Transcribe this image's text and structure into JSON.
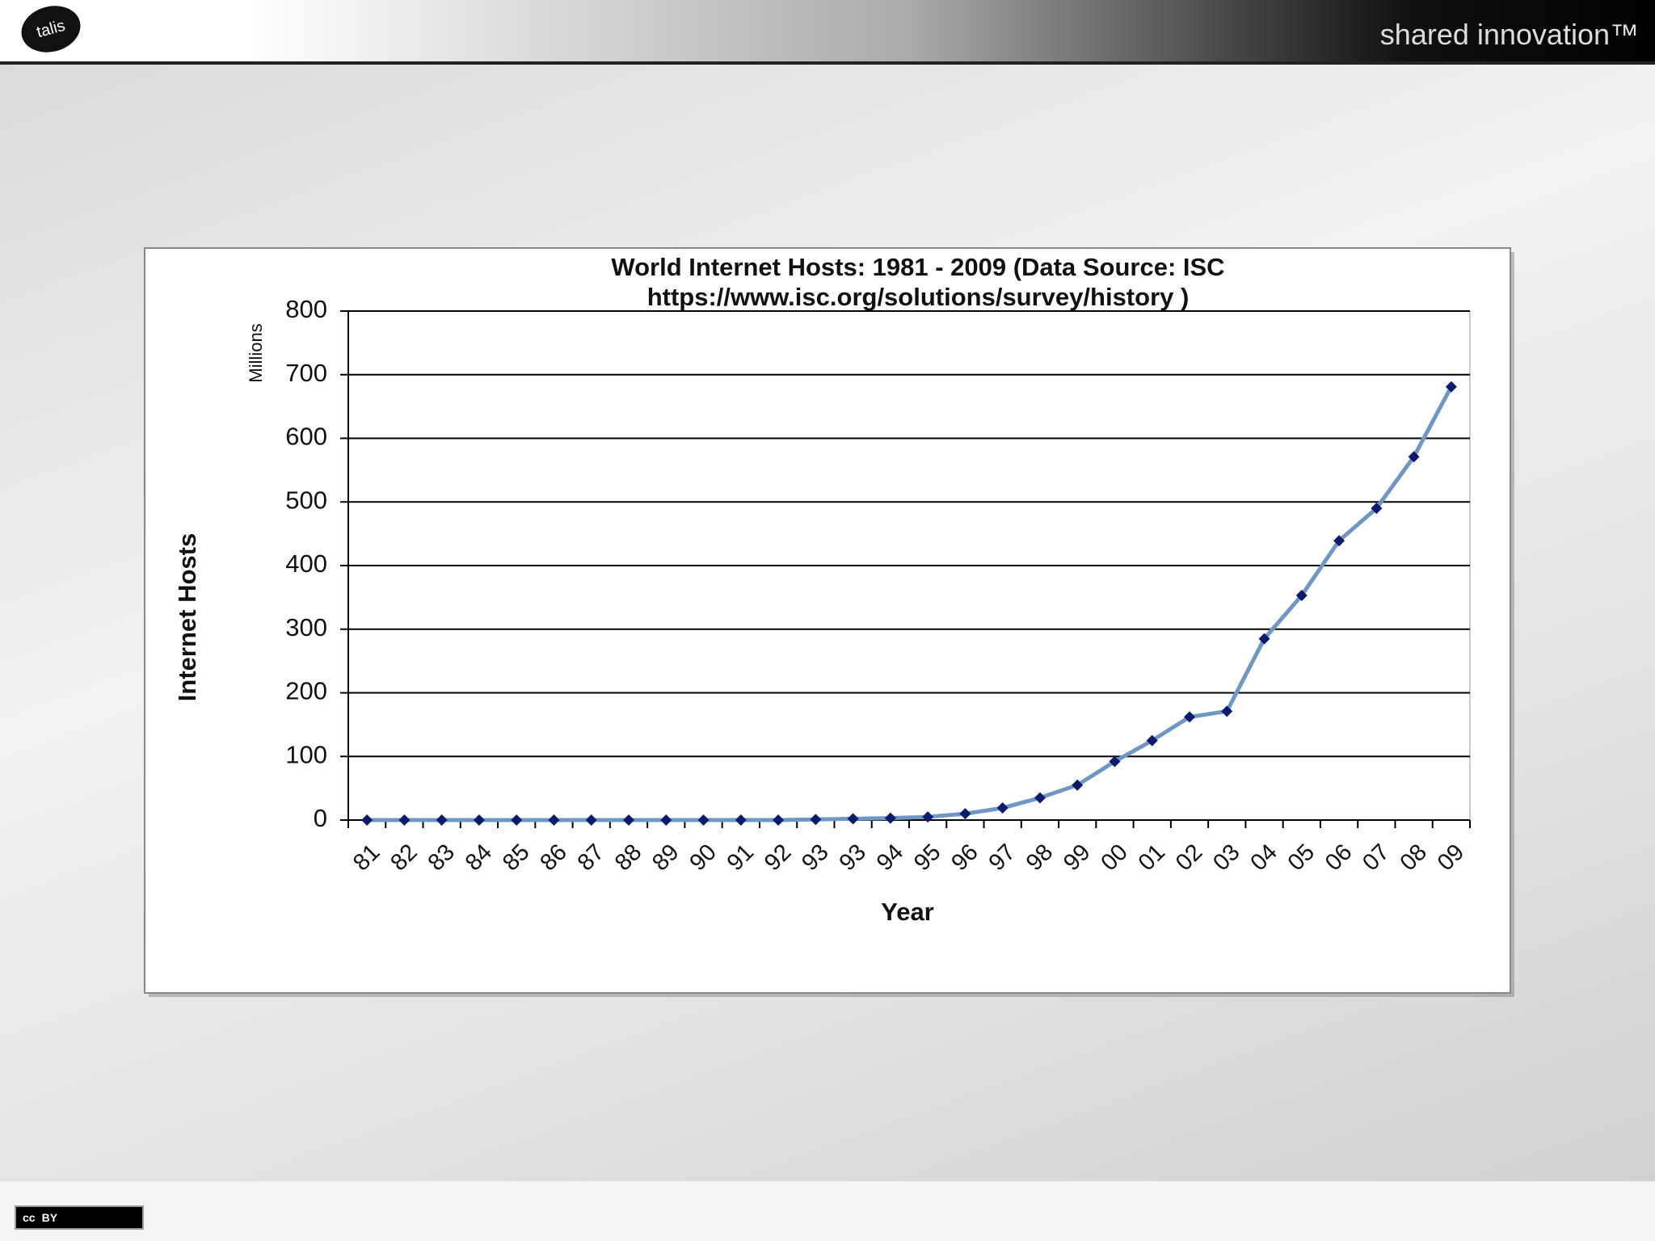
{
  "slide": {
    "logo": "talis",
    "tagline": "shared innovation™",
    "license_cc": "cc",
    "license": "BY"
  },
  "chart_data": {
    "type": "line",
    "title": [
      "World Internet Hosts: 1981 - 2009 (Data Source: ISC",
      "https://www.isc.org/solutions/survey/history )"
    ],
    "y_label": "Internet Hosts",
    "y_unit": "Millions",
    "x_label": "Year",
    "categories": [
      "81",
      "82",
      "83",
      "84",
      "85",
      "86",
      "87",
      "88",
      "89",
      "90",
      "91",
      "92",
      "93",
      "93",
      "94",
      "95",
      "96",
      "97",
      "98",
      "99",
      "00",
      "01",
      "02",
      "03",
      "04",
      "05",
      "06",
      "07",
      "08",
      "09"
    ],
    "values": [
      0,
      0,
      0,
      0,
      0,
      0,
      0,
      0,
      0,
      0,
      0,
      0,
      1,
      2,
      3,
      5,
      10,
      19,
      35,
      55,
      92,
      125,
      162,
      171,
      285,
      353,
      439,
      490,
      571,
      681
    ],
    "color": "#6f97c4",
    "marker_color": "#0a1a6e",
    "ylim": [
      0,
      800
    ],
    "yticks": [
      0,
      100,
      200,
      300,
      400,
      500,
      600,
      700,
      800
    ],
    "grid": true
  }
}
